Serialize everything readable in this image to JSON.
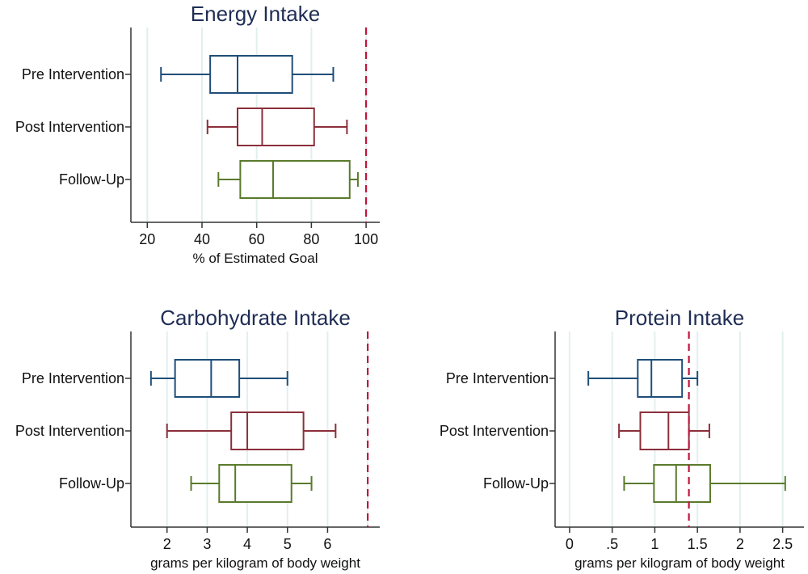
{
  "chart_data": [
    {
      "type": "boxplot",
      "title": "Energy Intake",
      "xlabel": "% of Estimated Goal",
      "xlim": [
        14,
        105
      ],
      "ticks": [
        20,
        40,
        60,
        80,
        100
      ],
      "tick_labels": [
        "20",
        "40",
        "60",
        "80",
        "100"
      ],
      "reference_line": 100,
      "categories": [
        "Pre Intervention",
        "Post Intervention",
        "Follow-Up"
      ],
      "series": [
        {
          "name": "Pre Intervention",
          "color": "#1f4e79",
          "min": 25,
          "q1": 43,
          "median": 53,
          "q3": 73,
          "max": 88
        },
        {
          "name": "Post Intervention",
          "color": "#8b2f3a",
          "min": 42,
          "q1": 53,
          "median": 62,
          "q3": 81,
          "max": 93
        },
        {
          "name": "Follow-Up",
          "color": "#5a7a2c",
          "min": 46,
          "q1": 54,
          "median": 66,
          "q3": 94,
          "max": 97
        }
      ]
    },
    {
      "type": "boxplot",
      "title": "Carbohydrate Intake",
      "xlabel": "grams per kilogram of body weight",
      "xlim": [
        1.1,
        7.3
      ],
      "ticks": [
        2,
        3,
        4,
        5,
        6
      ],
      "tick_labels": [
        "2",
        "3",
        "4",
        "5",
        "6"
      ],
      "grid_extra": [
        7
      ],
      "reference_line": 7,
      "categories": [
        "Pre Intervention",
        "Post Intervention",
        "Follow-Up"
      ],
      "series": [
        {
          "name": "Pre Intervention",
          "color": "#1f4e79",
          "min": 1.6,
          "q1": 2.2,
          "median": 3.1,
          "q3": 3.8,
          "max": 5.0
        },
        {
          "name": "Post Intervention",
          "color": "#8b2f3a",
          "min": 2.0,
          "q1": 3.6,
          "median": 4.0,
          "q3": 5.4,
          "max": 6.2
        },
        {
          "name": "Follow-Up",
          "color": "#5a7a2c",
          "min": 2.6,
          "q1": 3.3,
          "median": 3.7,
          "q3": 5.1,
          "max": 5.6
        }
      ]
    },
    {
      "type": "boxplot",
      "title": "Protein Intake",
      "xlabel": "grams per kilogram of body weight",
      "xlim": [
        -0.17,
        2.75
      ],
      "ticks": [
        0,
        0.5,
        1,
        1.5,
        2,
        2.5
      ],
      "tick_labels": [
        "0",
        ".5",
        "1",
        "1.5",
        "2",
        "2.5"
      ],
      "reference_line": 1.4,
      "categories": [
        "Pre Intervention",
        "Post Intervention",
        "Follow-Up"
      ],
      "series": [
        {
          "name": "Pre Intervention",
          "color": "#1f4e79",
          "min": 0.22,
          "q1": 0.8,
          "median": 0.96,
          "q3": 1.32,
          "max": 1.5
        },
        {
          "name": "Post Intervention",
          "color": "#8b2f3a",
          "min": 0.58,
          "q1": 0.83,
          "median": 1.16,
          "q3": 1.4,
          "max": 1.64
        },
        {
          "name": "Follow-Up",
          "color": "#5a7a2c",
          "min": 0.64,
          "q1": 0.99,
          "median": 1.25,
          "q3": 1.65,
          "max": 2.53
        }
      ]
    }
  ],
  "colors": {
    "reference_line": "#c0143c",
    "grid": "#e2efef",
    "axis": "#333333",
    "title": "#1f2d55"
  }
}
